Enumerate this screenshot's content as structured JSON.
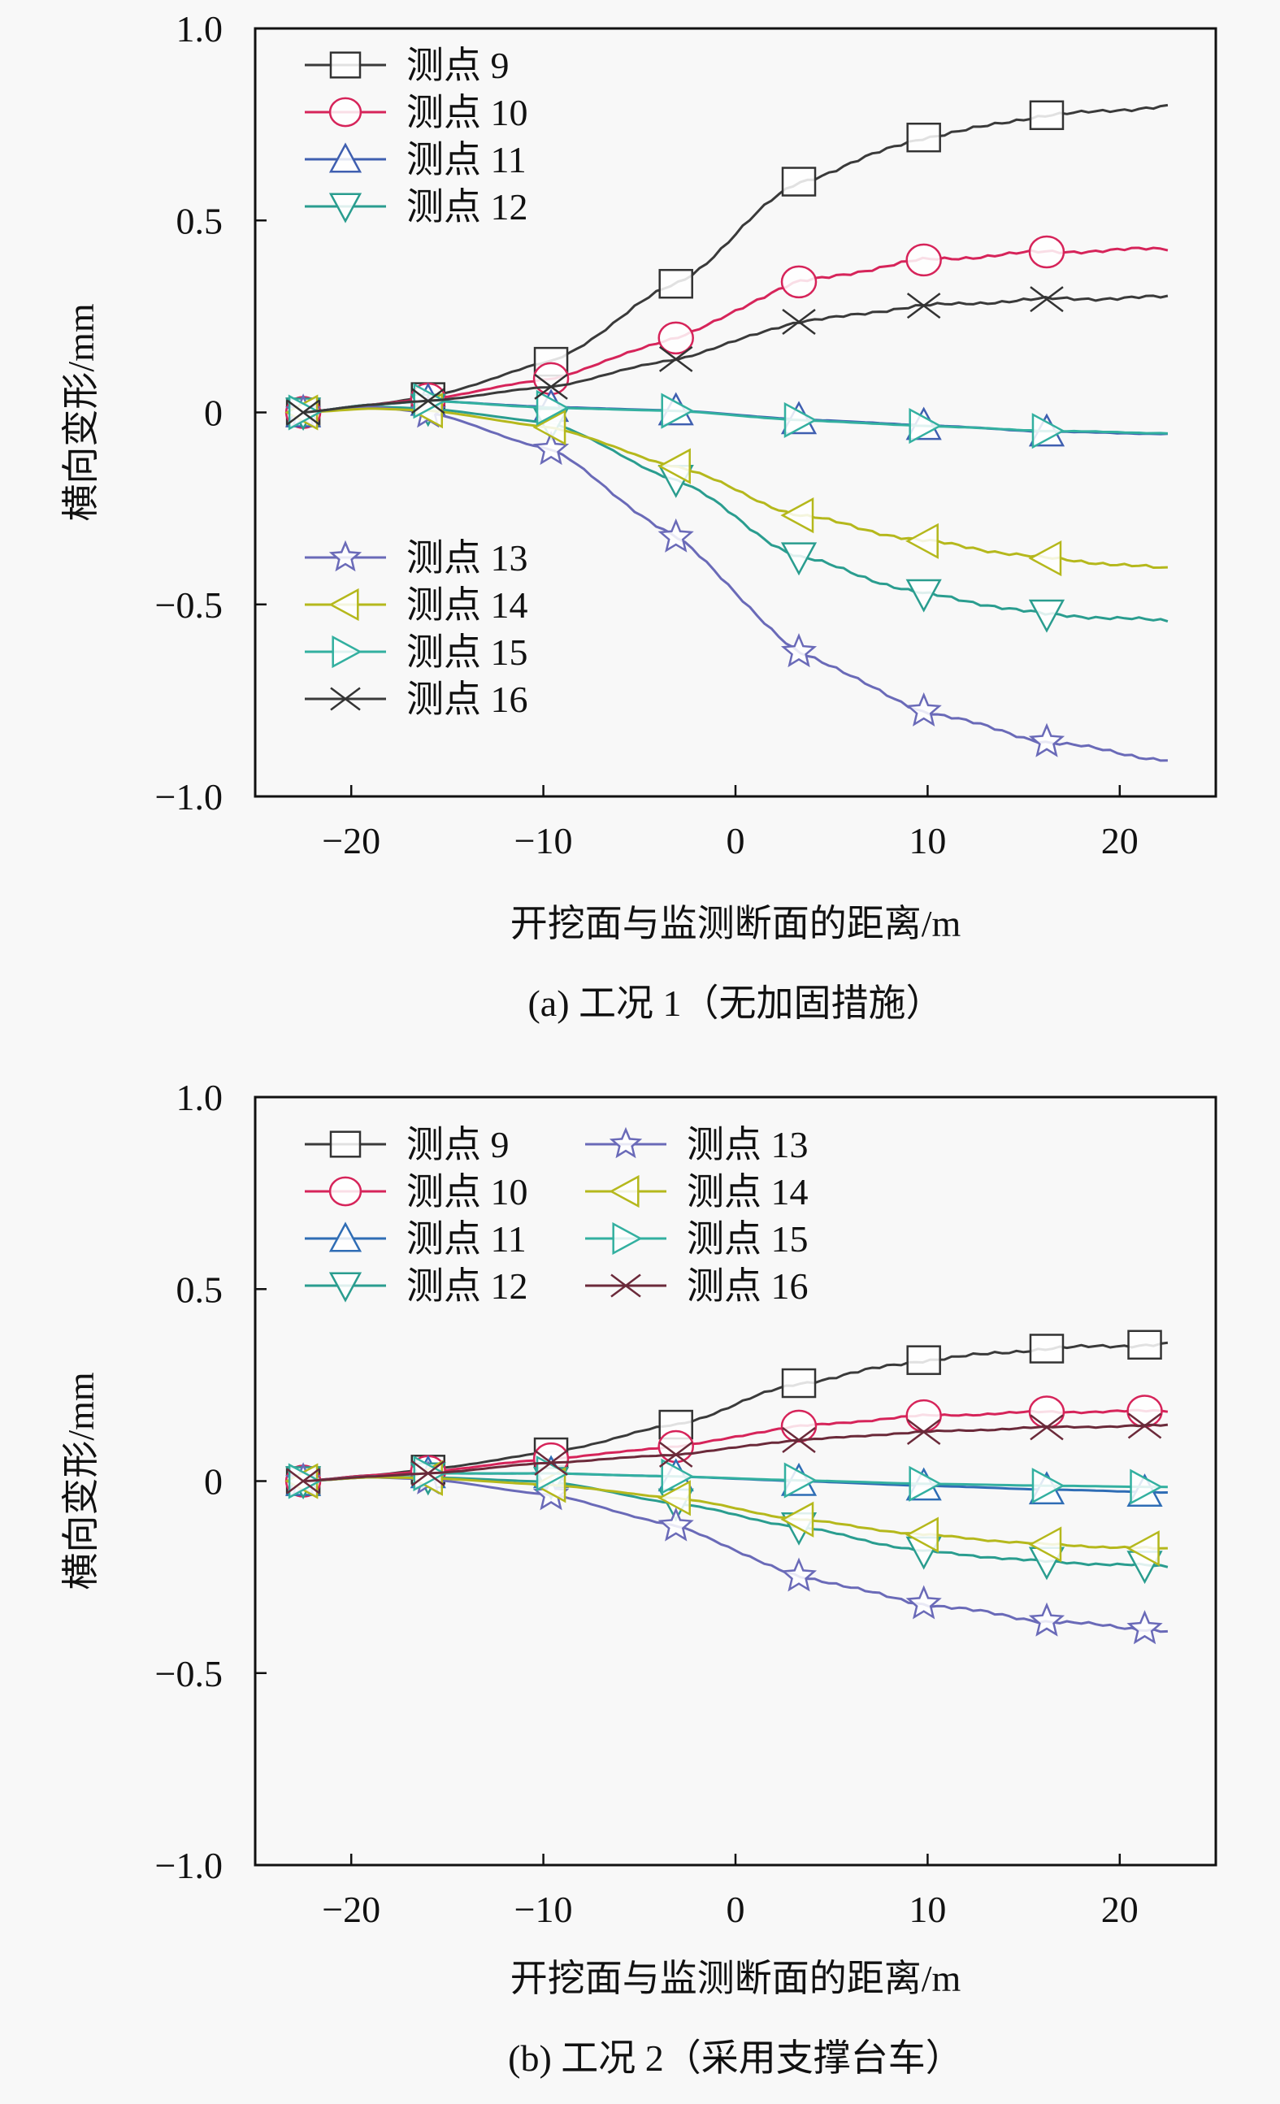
{
  "chart_data": [
    {
      "type": "line",
      "caption": "(a) 工况 1（无加固措施）",
      "xlabel": "开挖面与监测断面的距离/m",
      "ylabel": "横向变形/mm",
      "xlim": [
        -25,
        25
      ],
      "ylim": [
        -1.0,
        1.0
      ],
      "xticks": [
        -20,
        -10,
        0,
        10,
        20
      ],
      "xtick_labels": [
        "−20",
        "−10",
        "0",
        "10",
        "20"
      ],
      "yticks": [
        1.0,
        0.5,
        0,
        -0.5,
        -1.0
      ],
      "ytick_labels": [
        "1.0",
        "0.5",
        "0",
        "−0.5",
        "−1.0"
      ],
      "grid": false,
      "legend": {
        "layout": "two-groups-stacked",
        "placement": "top-left and middle-left"
      },
      "x": [
        -22.5,
        -19,
        -16,
        -9.6,
        -3.1,
        3.3,
        9.8,
        16.2,
        22.5
      ],
      "marker_x": [
        -22.5,
        -16,
        -9.6,
        -3.1,
        3.3,
        9.8,
        16.2
      ],
      "series": [
        {
          "name": "测点 9",
          "marker": "square",
          "color": "#3a3a3a",
          "values": [
            0,
            0.02,
            0.04,
            0.132,
            0.335,
            0.601,
            0.716,
            0.774,
            0.797
          ]
        },
        {
          "name": "测点 10",
          "marker": "circle",
          "color": "#d6245a",
          "values": [
            0,
            0.02,
            0.035,
            0.088,
            0.194,
            0.34,
            0.397,
            0.418,
            0.426
          ]
        },
        {
          "name": "测点 11",
          "marker": "triangle-up",
          "color": "#3f5fb0",
          "values": [
            0,
            0.02,
            0.03,
            0.014,
            0.005,
            -0.018,
            -0.033,
            -0.05,
            -0.056
          ]
        },
        {
          "name": "测点 12",
          "marker": "triangle-down",
          "color": "#2a9d8f",
          "values": [
            0,
            0.015,
            0.01,
            -0.027,
            -0.175,
            -0.377,
            -0.473,
            -0.526,
            -0.543
          ]
        },
        {
          "name": "测点 13",
          "marker": "star",
          "color": "#6a6ab8",
          "values": [
            0,
            0.015,
            0.0,
            -0.097,
            -0.325,
            -0.624,
            -0.778,
            -0.858,
            -0.905
          ]
        },
        {
          "name": "测点 14",
          "marker": "triangle-left",
          "color": "#b5b81c",
          "values": [
            0,
            0.01,
            0.005,
            -0.039,
            -0.14,
            -0.268,
            -0.335,
            -0.38,
            -0.407
          ]
        },
        {
          "name": "测点 15",
          "marker": "triangle-right",
          "color": "#33b0a0",
          "values": [
            0,
            0.02,
            0.03,
            0.012,
            0.004,
            -0.02,
            -0.035,
            -0.048,
            -0.054
          ]
        },
        {
          "name": "测点 16",
          "marker": "x",
          "color": "#3a3a3a",
          "values": [
            0,
            0.02,
            0.03,
            0.067,
            0.139,
            0.236,
            0.278,
            0.295,
            0.3
          ]
        }
      ]
    },
    {
      "type": "line",
      "caption": "(b) 工况 2（采用支撑台车）",
      "xlabel": "开挖面与监测断面的距离/m",
      "ylabel": "横向变形/mm",
      "xlim": [
        -25,
        25
      ],
      "ylim": [
        -1.0,
        1.0
      ],
      "xticks": [
        -20,
        -10,
        0,
        10,
        20
      ],
      "xtick_labels": [
        "−20",
        "−10",
        "0",
        "10",
        "20"
      ],
      "yticks": [
        1.0,
        0.5,
        0,
        -0.5,
        -1.0
      ],
      "ytick_labels": [
        "1.0",
        "0.5",
        "0",
        "−0.5",
        "−1.0"
      ],
      "grid": false,
      "legend": {
        "layout": "two-columns",
        "placement": "top-left"
      },
      "x": [
        -22.5,
        -19,
        -16,
        -9.6,
        -3.1,
        3.3,
        9.8,
        16.2,
        21.3,
        22.5
      ],
      "marker_x": [
        -22.5,
        -16,
        -9.6,
        -3.1,
        3.3,
        9.8,
        16.2,
        21.3
      ],
      "series": [
        {
          "name": "测点 9",
          "marker": "square",
          "color": "#3a3a3a",
          "values": [
            0,
            0.015,
            0.03,
            0.075,
            0.147,
            0.255,
            0.315,
            0.345,
            0.355,
            0.357
          ]
        },
        {
          "name": "测点 10",
          "marker": "circle",
          "color": "#d6245a",
          "values": [
            0,
            0.015,
            0.025,
            0.058,
            0.09,
            0.143,
            0.17,
            0.18,
            0.182,
            0.183
          ]
        },
        {
          "name": "测点 11",
          "marker": "triangle-up",
          "color": "#2f6db5",
          "values": [
            0,
            0.012,
            0.02,
            0.02,
            0.012,
            0.0,
            -0.012,
            -0.022,
            -0.028,
            -0.03
          ]
        },
        {
          "name": "测点 12",
          "marker": "triangle-down",
          "color": "#2a9d8f",
          "values": [
            0,
            0.01,
            0.01,
            -0.002,
            -0.058,
            -0.12,
            -0.183,
            -0.21,
            -0.22,
            -0.223
          ]
        },
        {
          "name": "测点 13",
          "marker": "star",
          "color": "#6a6ab8",
          "values": [
            0,
            0.01,
            0.005,
            -0.036,
            -0.117,
            -0.248,
            -0.32,
            -0.365,
            -0.385,
            -0.39
          ]
        },
        {
          "name": "测点 14",
          "marker": "triangle-left",
          "color": "#b5b81c",
          "values": [
            0,
            0.01,
            0.008,
            -0.01,
            -0.044,
            -0.1,
            -0.14,
            -0.165,
            -0.175,
            -0.177
          ]
        },
        {
          "name": "测点 15",
          "marker": "triangle-right",
          "color": "#33b0a0",
          "values": [
            0,
            0.012,
            0.02,
            0.02,
            0.012,
            0.002,
            -0.007,
            -0.012,
            -0.015,
            -0.015
          ]
        },
        {
          "name": "测点 16",
          "marker": "x",
          "color": "#6b2a3a",
          "values": [
            0,
            0.012,
            0.02,
            0.048,
            0.069,
            0.107,
            0.128,
            0.14,
            0.144,
            0.145
          ]
        }
      ]
    }
  ]
}
